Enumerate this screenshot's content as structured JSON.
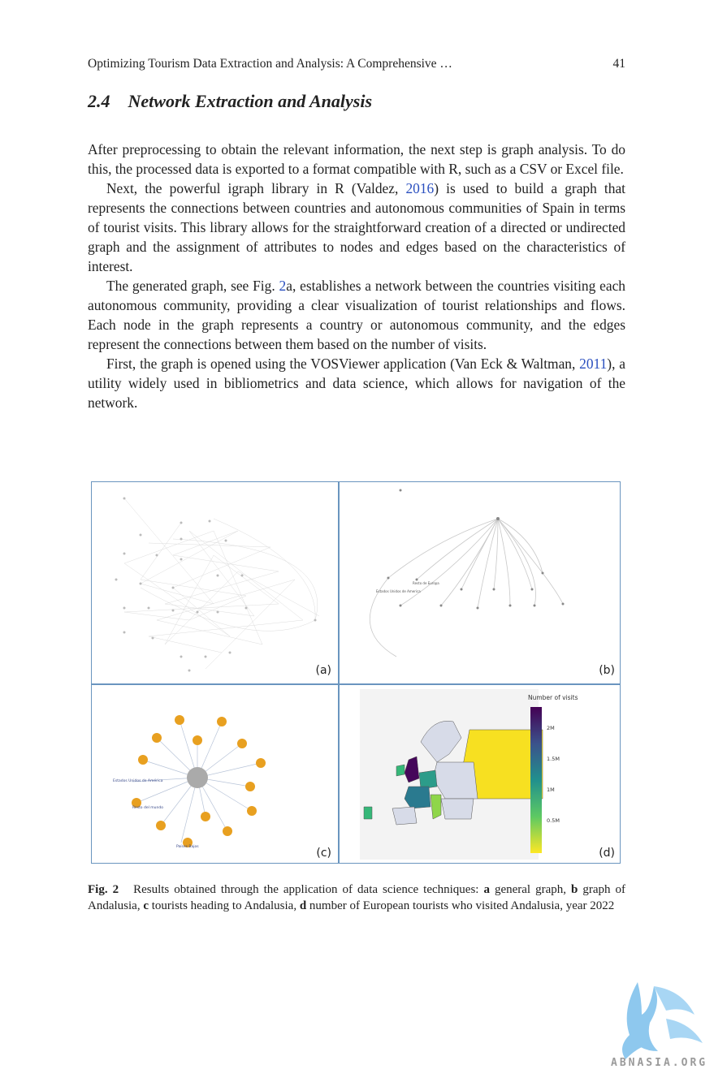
{
  "header": {
    "running_title": "Optimizing Tourism Data Extraction and Analysis: A Comprehensive …",
    "page_number": "41"
  },
  "section": {
    "number": "2.4",
    "title": "Network Extraction and Analysis"
  },
  "paragraphs": {
    "p1": "After preprocessing to obtain the relevant information, the next step is graph analysis. To do this, the processed data is exported to a format compatible with R, such as a CSV or Excel file.",
    "p2_a": "Next, the powerful igraph library in R (Valdez, ",
    "p2_cite": "2016",
    "p2_b": ") is used to build a graph that represents the connections between countries and autonomous communities of Spain in terms of tourist visits. This library allows for the straightforward creation of a directed or undirected graph and the assignment of attributes to nodes and edges based on the characteristics of interest.",
    "p3_a": "The generated graph, see Fig. ",
    "p3_cite": "2",
    "p3_b": "a, establishes a network between the countries visiting each autonomous community, providing a clear visualization of tourist relationships and flows. Each node in the graph represents a country or autonomous community, and the edges represent the connections between them based on the number of visits.",
    "p4_a": "First, the graph is opened using the VOSViewer application (Van Eck & Waltman, ",
    "p4_cite": "2011",
    "p4_b": "), a utility widely used in bibliometrics and data science, which allows for navigation of the network."
  },
  "figure": {
    "panel_labels": [
      "(a)",
      "(b)",
      "(c)",
      "(d)"
    ],
    "panel_c_labels": [
      "Estados Unidos de América",
      "Resto del mundo",
      "Países Bajos"
    ],
    "panel_b_labels": [
      "Estados Unidos de America",
      "Resto de Europa"
    ],
    "colorbar": {
      "title": "Number of visits",
      "ticks": [
        "2M",
        "1.5M",
        "1M",
        "0.5M"
      ]
    },
    "colors": {
      "frame": "#6a95bf",
      "node_orange": "#e8a020",
      "viridis_high": "#440154",
      "viridis_low": "#fde725"
    }
  },
  "caption": {
    "label": "Fig. 2",
    "intro": "Results obtained through the application of data science techniques: ",
    "a": "a",
    "a_text": " general graph, ",
    "b": "b",
    "b_text": " graph of Andalusia, ",
    "c": "c",
    "c_text": " tourists heading to Andalusia, ",
    "d": "d",
    "d_text": " number of European tourists who visited Andalusia, year 2022"
  },
  "watermark": {
    "text": "ABNASIA.ORG"
  }
}
